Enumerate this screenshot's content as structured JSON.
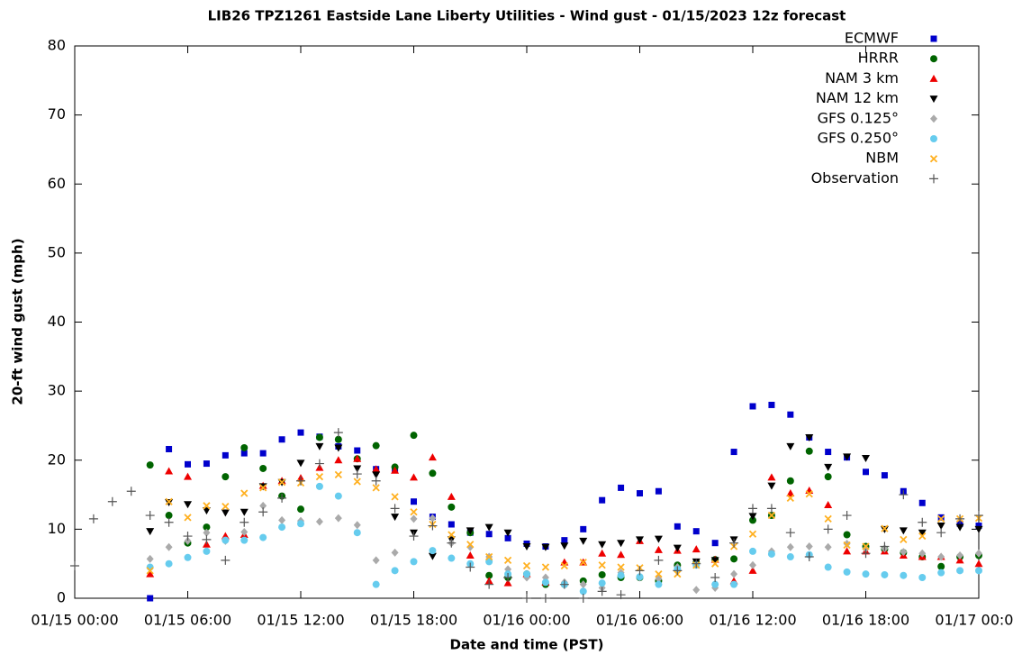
{
  "chart_data": {
    "type": "scatter",
    "title": "LIB26 TPZ1261 Eastside Lane Liberty Utilities - Wind gust - 01/15/2023 12z forecast",
    "x_label": "Date and time (PST)",
    "y_label": "20-ft wind gust (mph)",
    "xlim": [
      0,
      48
    ],
    "ylim": [
      0,
      80
    ],
    "xticks": [
      {
        "value": 0,
        "label": "01/15 00:00"
      },
      {
        "value": 6,
        "label": "01/15 06:00"
      },
      {
        "value": 12,
        "label": "01/15 12:00"
      },
      {
        "value": 18,
        "label": "01/15 18:00"
      },
      {
        "value": 24,
        "label": "01/16 00:00"
      },
      {
        "value": 30,
        "label": "01/16 06:00"
      },
      {
        "value": 36,
        "label": "01/16 12:00"
      },
      {
        "value": 42,
        "label": "01/16 18:00"
      },
      {
        "value": 48,
        "label": "01/17 00:00"
      }
    ],
    "yticks": [
      0,
      10,
      20,
      30,
      40,
      50,
      60,
      70,
      80
    ],
    "legend": "top right",
    "x": [
      4,
      5,
      6,
      7,
      8,
      9,
      10,
      11,
      12,
      13,
      14,
      15,
      16,
      17,
      18,
      19,
      20,
      21,
      22,
      23,
      24,
      25,
      26,
      27,
      28,
      29,
      30,
      31,
      32,
      33,
      34,
      35,
      36,
      37,
      38,
      39,
      40,
      41,
      42,
      43,
      44,
      45,
      46,
      47,
      48
    ],
    "series": [
      {
        "name": "ECMWF",
        "color": "#0000cc",
        "marker": "square",
        "values": [
          0,
          21.6,
          19.4,
          19.5,
          20.7,
          21,
          21,
          23,
          24,
          23.4,
          22,
          21.4,
          18.7,
          18.6,
          14,
          11.8,
          10.7,
          9.5,
          9.3,
          8.7,
          7.9,
          7.5,
          8.4,
          10,
          14.2,
          16,
          15.2,
          15.5,
          10.4,
          9.7,
          8,
          21.2,
          27.8,
          28,
          26.6,
          23.3,
          21.2,
          20.4,
          18.3,
          17.8,
          15.5,
          13.8,
          11.7,
          10.8,
          10.5
        ]
      },
      {
        "name": "HRRR",
        "color": "#006400",
        "marker": "circle",
        "values": [
          19.3,
          12,
          8,
          10.3,
          17.6,
          21.8,
          18.8,
          14.8,
          12.9,
          23.3,
          23,
          20.2,
          22.1,
          19,
          23.6,
          18.1,
          13.2,
          9.5,
          3.3,
          3,
          3.5,
          2,
          2,
          2.5,
          3.4,
          3,
          3,
          2.5,
          4.8,
          5.2,
          5.6,
          5.7,
          11.3,
          12,
          17,
          21.3,
          17.6,
          9.2,
          7.5,
          7.1,
          6.6,
          6,
          4.6,
          6,
          6.2
        ]
      },
      {
        "name": "NAM 3 km",
        "color": "#ee0000",
        "marker": "triangle-up",
        "values": [
          3.5,
          18.4,
          17.6,
          7.8,
          9,
          9.2,
          16.3,
          17,
          17.4,
          18.9,
          20,
          20.2,
          18.7,
          18.5,
          17.5,
          20.4,
          14.7,
          6.2,
          2.5,
          2.2,
          3.5,
          2.3,
          5.2,
          5.2,
          6.5,
          6.3,
          8.3,
          7,
          6.9,
          7.1,
          5.6,
          2.5,
          4,
          17.5,
          15.2,
          15.6,
          13.5,
          6.8,
          6.8,
          6.8,
          6.2,
          6,
          6,
          5.5,
          5
        ]
      },
      {
        "name": "NAM 12 km",
        "color": "#000000",
        "marker": "triangle-down",
        "values": [
          9.7,
          13.9,
          13.6,
          12.7,
          12.4,
          12.5,
          16.2,
          16.8,
          19.6,
          22,
          21.8,
          18.8,
          17.9,
          11.8,
          9.5,
          6.1,
          8.5,
          9.8,
          10.3,
          9.5,
          7.5,
          7.4,
          7.6,
          8.3,
          7.8,
          8,
          8.5,
          8.6,
          7.3,
          5.3,
          5.5,
          8.5,
          11.9,
          16.3,
          22,
          23.3,
          19,
          20.5,
          20.3,
          10,
          9.8,
          9.5,
          10.5,
          10.3,
          10
        ]
      },
      {
        "name": "GFS 0.125°",
        "color": "#aaaaaa",
        "marker": "diamond",
        "values": [
          5.7,
          7.4,
          8.3,
          9.5,
          8.3,
          9.6,
          13.4,
          11.3,
          11.2,
          11.1,
          11.6,
          10.6,
          5.5,
          6.6,
          11.5,
          11.6,
          8,
          7.4,
          6,
          4.2,
          3,
          3,
          2.3,
          2,
          1.5,
          3.7,
          3,
          2.8,
          4.5,
          1.2,
          1.5,
          3.5,
          4.8,
          6.8,
          7.4,
          7.5,
          7.4,
          7.9,
          7.2,
          7.2,
          6.7,
          6.5,
          6,
          6.2,
          6.5
        ]
      },
      {
        "name": "GFS 0.250°",
        "color": "#66ccee",
        "marker": "circle",
        "values": [
          4.5,
          5,
          5.9,
          6.8,
          8.4,
          8.4,
          8.8,
          10.3,
          10.8,
          16.2,
          14.8,
          9.5,
          2,
          4,
          5.3,
          6.9,
          5.8,
          5,
          5.3,
          3.5,
          3.5,
          2.3,
          2,
          1,
          2.2,
          3.3,
          3.1,
          2,
          4.2,
          4.8,
          2,
          2,
          6.8,
          6.4,
          6,
          6.3,
          4.5,
          3.8,
          3.5,
          3.4,
          3.3,
          3,
          3.7,
          4,
          4
        ]
      },
      {
        "name": "NBM",
        "color": "#ffb020",
        "marker": "x",
        "values": [
          4,
          14,
          11.7,
          13.4,
          13.3,
          15.2,
          16,
          16.8,
          16.7,
          17.6,
          17.9,
          16.9,
          16,
          14.7,
          12.5,
          10.7,
          9.2,
          7.8,
          6,
          5.5,
          4.7,
          4.5,
          4.7,
          5.2,
          4.8,
          4.5,
          4.4,
          3.5,
          3.5,
          4.8,
          5,
          7.5,
          9.3,
          12,
          14.5,
          15.1,
          11.5,
          7.7,
          7.5,
          10.1,
          8.5,
          9,
          11.5,
          11.5,
          11.6
        ]
      },
      {
        "name": "Observation",
        "color": "#555555",
        "marker": "plus",
        "x": [
          0,
          1,
          2,
          3,
          4,
          5,
          6,
          7,
          8,
          9,
          10,
          11,
          12,
          13,
          14,
          15,
          16,
          17,
          18,
          19,
          20,
          21,
          22,
          23,
          24,
          25,
          26,
          27,
          28,
          29,
          30,
          31,
          32,
          33,
          34,
          35,
          36,
          37,
          38,
          39,
          40,
          41,
          42,
          43,
          44,
          45,
          46,
          47,
          48
        ],
        "values": [
          4.7,
          11.5,
          14,
          15.5,
          12,
          11,
          9,
          8.5,
          5.5,
          11,
          12.5,
          14.5,
          17,
          19.5,
          24,
          18,
          17,
          13,
          9,
          10.5,
          8,
          4.5,
          2,
          3,
          0,
          0,
          2,
          0,
          1,
          0.5,
          4,
          5.5,
          4,
          5,
          3,
          8,
          13,
          13,
          9.5,
          6,
          10,
          12,
          6.5,
          7.5,
          15,
          11,
          9.5,
          11.5,
          12
        ]
      }
    ]
  }
}
